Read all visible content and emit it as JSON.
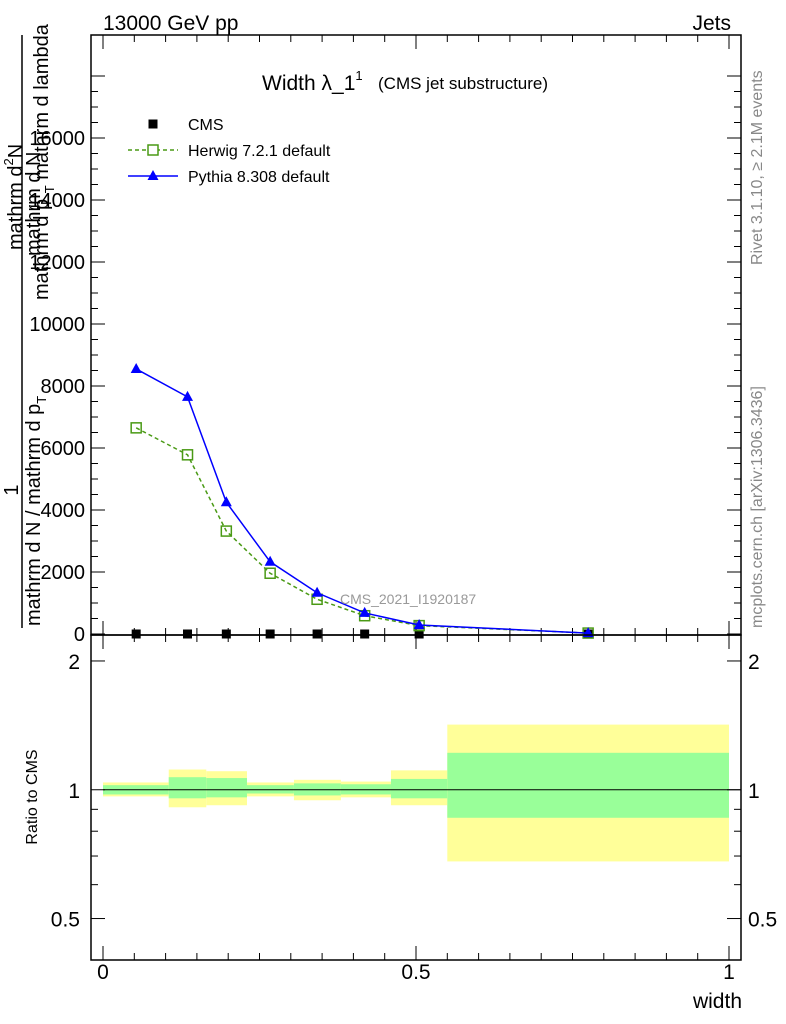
{
  "header": {
    "left": "13000 GeV pp",
    "right": "Jets"
  },
  "side_labels": {
    "rivet": "Rivet 3.1.10, ≥ 2.1M events",
    "mcplots": "mcplots.cern.ch [arXiv:1306.3436]"
  },
  "watermark": "CMS_2021_I1920187",
  "chart_data": [
    {
      "type": "line",
      "title": "Width λ_1",
      "title_superscript": "1",
      "subtitle": "(CMS jet substructure)",
      "xlim": [
        0,
        1
      ],
      "ylim": [
        0,
        18000
      ],
      "ylabel_parts": {
        "numerator_one": "1",
        "fraction_left_num": "mathrm d N",
        "fraction_left_den": "mathrm d N / mathrm d p",
        "fraction_right_num": "mathrm d",
        "fraction_right_num_suffix": "N",
        "fraction_right_num_sup": "2",
        "fraction_right_den": "mathrm d p",
        "fraction_right_den_sub": "T",
        "fraction_right_den_suffix": "mathrm d lambda",
        "den_left_sub": "T"
      },
      "yticks": [
        0,
        2000,
        4000,
        6000,
        8000,
        10000,
        12000,
        14000,
        16000
      ],
      "ytick_labels": [
        "0",
        "2000",
        "4000",
        "6000",
        "8000",
        "10000",
        "12000",
        "14000",
        "16000"
      ],
      "legend_position": "top-left",
      "series": [
        {
          "name": "CMS",
          "color": "#000000",
          "marker": "square-filled",
          "x": [
            0.053,
            0.135,
            0.197,
            0.267,
            0.342,
            0.418,
            0.505,
            0.775
          ],
          "y": [
            0,
            0,
            0,
            0,
            0,
            0,
            0,
            0
          ]
        },
        {
          "name": "Herwig 7.2.1 default",
          "color": "#4a9a15",
          "marker": "square-open",
          "line": "dashed",
          "x": [
            0.053,
            0.135,
            0.197,
            0.267,
            0.342,
            0.418,
            0.505,
            0.775
          ],
          "y": [
            6650,
            5780,
            3320,
            1960,
            1120,
            590,
            270,
            30
          ]
        },
        {
          "name": "Pythia 8.308 default",
          "color": "#0000ff",
          "marker": "triangle-filled",
          "line": "solid",
          "x": [
            0.053,
            0.135,
            0.197,
            0.267,
            0.342,
            0.418,
            0.505,
            0.775
          ],
          "y": [
            8550,
            7650,
            4250,
            2330,
            1330,
            680,
            290,
            30
          ]
        }
      ]
    },
    {
      "type": "bar",
      "ylabel": "Ratio to CMS",
      "xlabel": "width",
      "xlim": [
        0,
        1
      ],
      "ylim": [
        0.4,
        2.3
      ],
      "log_y": true,
      "yticks": [
        0.5,
        1,
        2
      ],
      "ytick_labels": [
        "0.5",
        "1",
        "2"
      ],
      "xticks": [
        0,
        0.5,
        1
      ],
      "xtick_labels": [
        "0",
        "0.5",
        "1"
      ],
      "reference_line": 1,
      "band_colors": {
        "outer": "#ffff99",
        "inner": "#99ff99"
      },
      "bins": [
        {
          "lo": 0.0,
          "hi": 0.105,
          "outer": [
            0.965,
            1.04
          ],
          "inner": [
            0.975,
            1.025
          ]
        },
        {
          "lo": 0.105,
          "hi": 0.165,
          "outer": [
            0.91,
            1.115
          ],
          "inner": [
            0.955,
            1.07
          ]
        },
        {
          "lo": 0.165,
          "hi": 0.23,
          "outer": [
            0.92,
            1.105
          ],
          "inner": [
            0.96,
            1.065
          ]
        },
        {
          "lo": 0.23,
          "hi": 0.305,
          "outer": [
            0.965,
            1.04
          ],
          "inner": [
            0.98,
            1.025
          ]
        },
        {
          "lo": 0.305,
          "hi": 0.38,
          "outer": [
            0.945,
            1.055
          ],
          "inner": [
            0.97,
            1.035
          ]
        },
        {
          "lo": 0.38,
          "hi": 0.46,
          "outer": [
            0.96,
            1.045
          ],
          "inner": [
            0.975,
            1.03
          ]
        },
        {
          "lo": 0.46,
          "hi": 0.55,
          "outer": [
            0.92,
            1.11
          ],
          "inner": [
            0.955,
            1.06
          ]
        },
        {
          "lo": 0.55,
          "hi": 1.0,
          "outer": [
            0.68,
            1.42
          ],
          "inner": [
            0.86,
            1.22
          ]
        }
      ]
    }
  ]
}
